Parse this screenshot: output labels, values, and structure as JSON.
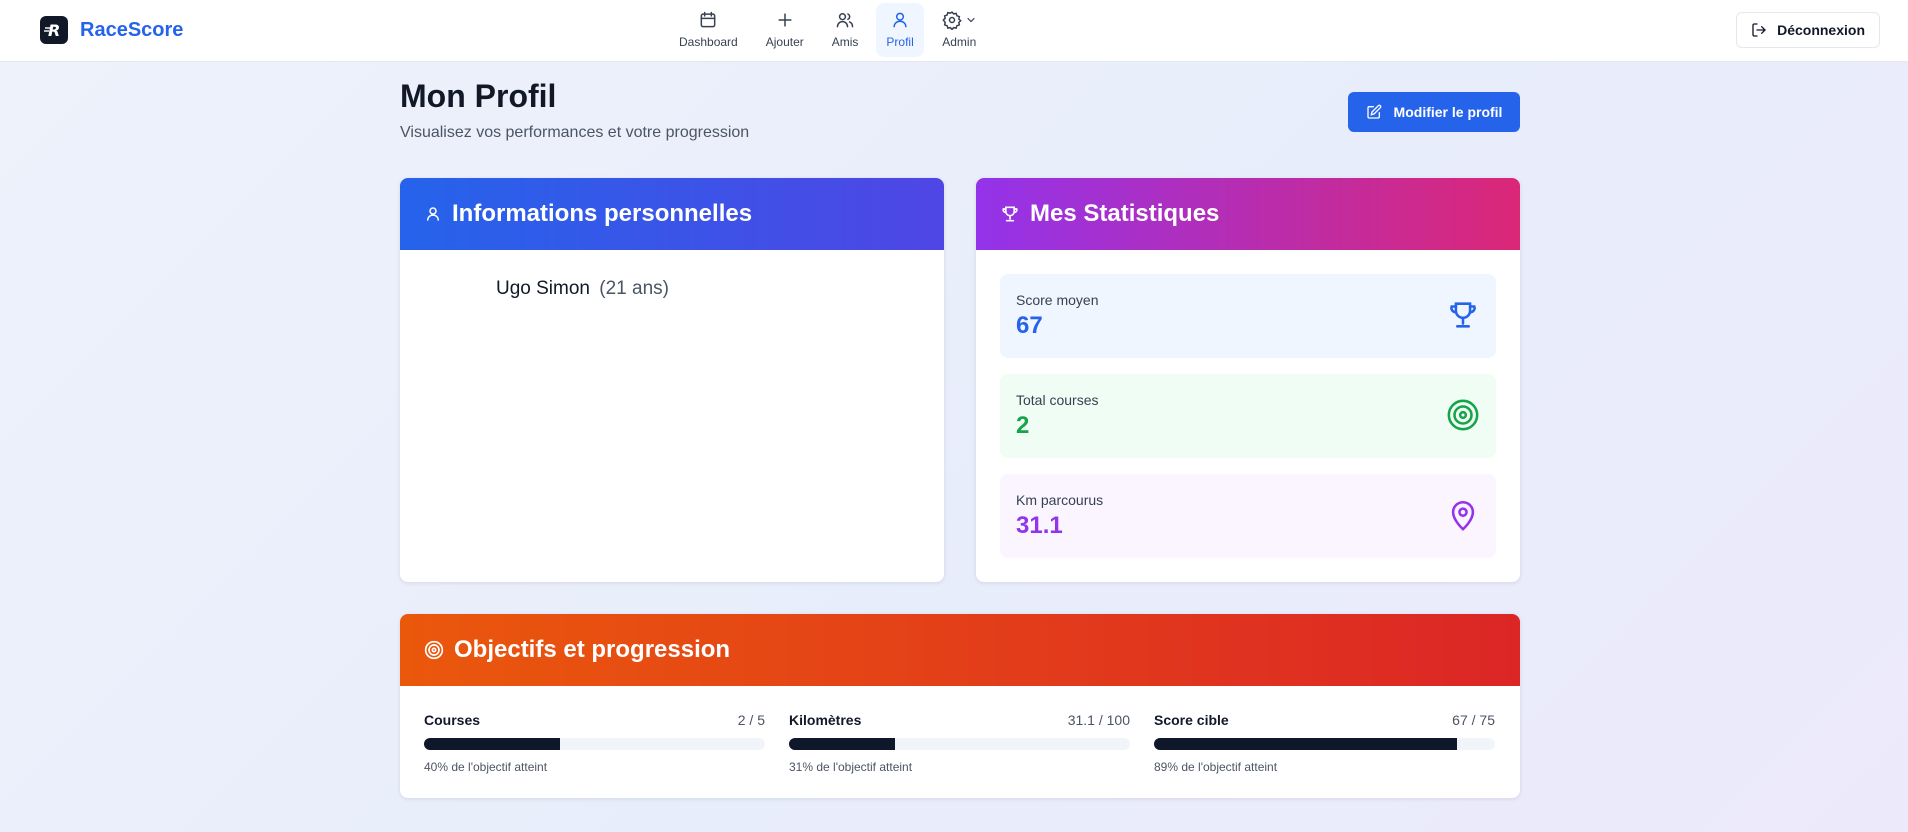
{
  "header": {
    "brand": "RaceScore",
    "nav": [
      {
        "label": "Dashboard",
        "icon": "calendar-icon"
      },
      {
        "label": "Ajouter",
        "icon": "plus-icon"
      },
      {
        "label": "Amis",
        "icon": "users-icon"
      },
      {
        "label": "Profil",
        "icon": "user-icon",
        "active": true
      },
      {
        "label": "Admin",
        "icon": "gear-icon"
      }
    ],
    "logout_label": "Déconnexion"
  },
  "page": {
    "title": "Mon Profil",
    "subtitle": "Visualisez vos performances et votre progression",
    "edit_label": "Modifier le profil"
  },
  "personal": {
    "title": "Informations personnelles",
    "name": "Ugo Simon",
    "age": "(21 ans)"
  },
  "stats": {
    "title": "Mes Statistiques",
    "items": [
      {
        "label": "Score moyen",
        "value": "67",
        "icon": "trophy-icon",
        "color": "#2563eb"
      },
      {
        "label": "Total courses",
        "value": "2",
        "icon": "target-icon",
        "color": "#16a34a"
      },
      {
        "label": "Km parcourus",
        "value": "31.1",
        "icon": "map-pin-icon",
        "color": "#9333ea"
      }
    ]
  },
  "goals": {
    "title": "Objectifs et progression",
    "items": [
      {
        "label": "Courses",
        "value": "2 / 5",
        "progress": 0.4,
        "note": "40% de l'objectif atteint"
      },
      {
        "label": "Kilomètres",
        "value": "31.1 / 100",
        "progress": 0.31,
        "note": "31% de l'objectif atteint"
      },
      {
        "label": "Score cible",
        "value": "67 / 75",
        "progress": 0.89,
        "note": "89% de l'objectif atteint"
      }
    ]
  }
}
